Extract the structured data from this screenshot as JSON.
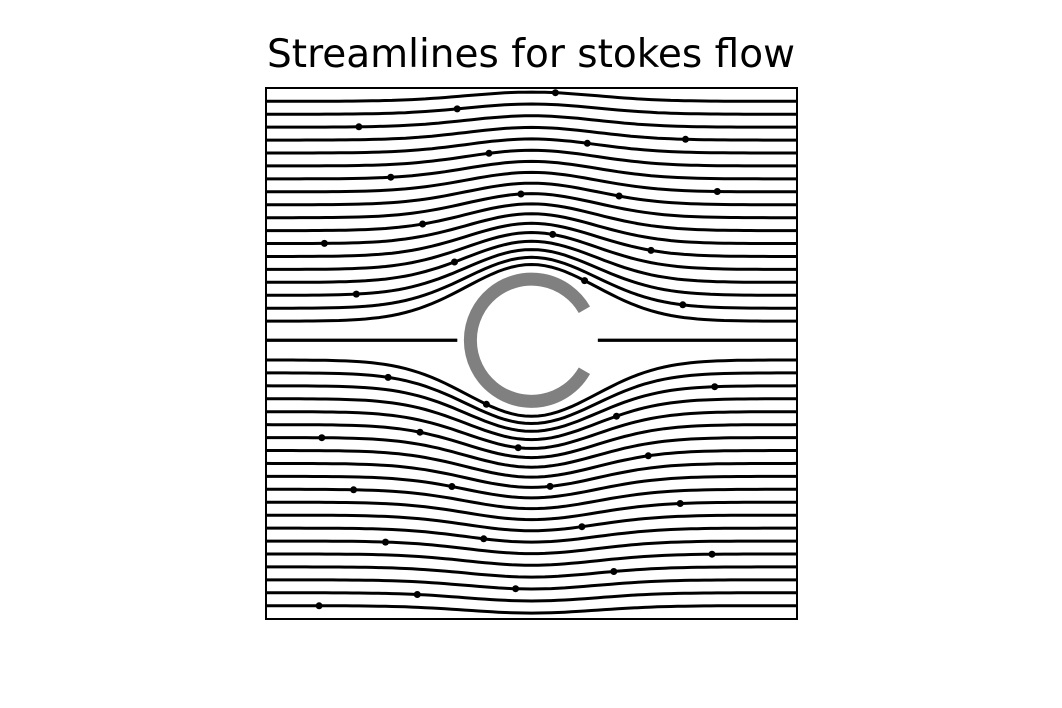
{
  "chart_data": {
    "type": "streamplot",
    "title": "Streamlines for stokes flow",
    "xlabel": "",
    "ylabel": "",
    "axis_ticks": "none",
    "grid": false,
    "xlim": [
      -1,
      1
    ],
    "ylim": [
      -1,
      1
    ],
    "field": {
      "flow": "uniform flow in +x direction with a stagnating region around an obstacle at the center",
      "flow_direction": "left-to-right",
      "num_streamlines_shown": 40
    },
    "obstacle": {
      "shape": "open circular ring (C-shape, opening facing right)",
      "center": [
        0,
        0.05
      ],
      "radius": 0.23,
      "color": "#808080"
    },
    "streamline_color": "#000000",
    "arrow_style": "small dot/arrowhead markers on each streamline"
  }
}
